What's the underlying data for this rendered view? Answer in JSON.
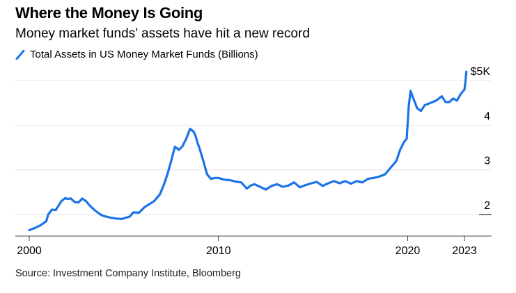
{
  "title": "Where the Money Is Going",
  "subtitle": "Money market funds' assets have hit a new record",
  "legend_label": "Total Assets in US Money Market Funds (Billions)",
  "source": "Source: Investment Company Institute, Bloomberg",
  "line_color": "#1a73e8",
  "chart_data": {
    "type": "line",
    "title": "Where the Money Is Going",
    "xlabel": "",
    "ylabel": "Total Assets in US Money Market Funds (Billions)",
    "xlim": [
      2000,
      2023.3
    ],
    "ylim": [
      1.55,
      5.2
    ],
    "x_ticks": [
      {
        "value": 2000,
        "label": "2000"
      },
      {
        "value": 2010,
        "label": "2010"
      },
      {
        "value": 2020,
        "label": "2020"
      },
      {
        "value": 2023,
        "label": "2023"
      }
    ],
    "y_ticks": [
      {
        "value": 5,
        "label": "$5K"
      },
      {
        "value": 4,
        "label": "4"
      },
      {
        "value": 3,
        "label": "3"
      },
      {
        "value": 2,
        "label": "2"
      }
    ],
    "grid": true,
    "series": [
      {
        "name": "Total Assets in US Money Market Funds (Billions)",
        "x": [
          2000.0,
          2000.3,
          2000.6,
          2000.9,
          2001.0,
          2001.2,
          2001.4,
          2001.7,
          2001.9,
          2002.0,
          2002.2,
          2002.4,
          2002.6,
          2002.8,
          2003.0,
          2003.2,
          2003.4,
          2003.6,
          2003.8,
          2004.0,
          2004.3,
          2004.6,
          2004.9,
          2005.1,
          2005.3,
          2005.5,
          2005.8,
          2006.1,
          2006.3,
          2006.6,
          2006.9,
          2007.1,
          2007.3,
          2007.5,
          2007.7,
          2007.9,
          2008.1,
          2008.3,
          2008.5,
          2008.7,
          2008.8,
          2008.9,
          2009.0,
          2009.2,
          2009.4,
          2009.6,
          2009.8,
          2010.0,
          2010.3,
          2010.6,
          2010.9,
          2011.2,
          2011.5,
          2011.7,
          2011.9,
          2012.2,
          2012.5,
          2012.8,
          2013.1,
          2013.4,
          2013.7,
          2014.0,
          2014.3,
          2014.6,
          2014.9,
          2015.2,
          2015.5,
          2015.8,
          2016.1,
          2016.4,
          2016.7,
          2017.0,
          2017.3,
          2017.6,
          2017.9,
          2018.2,
          2018.5,
          2018.8,
          2019.1,
          2019.4,
          2019.6,
          2019.8,
          2019.95,
          2020.05,
          2020.15,
          2020.3,
          2020.5,
          2020.7,
          2020.9,
          2021.2,
          2021.5,
          2021.8,
          2022.0,
          2022.2,
          2022.4,
          2022.6,
          2022.8,
          2023.0,
          2023.05,
          2023.1
        ],
        "values": [
          1.65,
          1.7,
          1.76,
          1.85,
          2.0,
          2.11,
          2.1,
          2.3,
          2.37,
          2.35,
          2.36,
          2.28,
          2.27,
          2.36,
          2.3,
          2.2,
          2.12,
          2.05,
          1.99,
          1.96,
          1.93,
          1.91,
          1.9,
          1.93,
          1.95,
          2.05,
          2.04,
          2.17,
          2.22,
          2.3,
          2.45,
          2.65,
          2.9,
          3.2,
          3.52,
          3.45,
          3.53,
          3.7,
          3.92,
          3.85,
          3.75,
          3.6,
          3.48,
          3.2,
          2.9,
          2.8,
          2.82,
          2.82,
          2.78,
          2.77,
          2.74,
          2.72,
          2.58,
          2.65,
          2.68,
          2.62,
          2.56,
          2.64,
          2.68,
          2.62,
          2.65,
          2.72,
          2.61,
          2.66,
          2.7,
          2.73,
          2.64,
          2.7,
          2.75,
          2.7,
          2.75,
          2.69,
          2.75,
          2.72,
          2.8,
          2.82,
          2.85,
          2.9,
          3.05,
          3.2,
          3.45,
          3.62,
          3.7,
          4.4,
          4.77,
          4.6,
          4.38,
          4.32,
          4.45,
          4.5,
          4.55,
          4.65,
          4.52,
          4.52,
          4.6,
          4.55,
          4.7,
          4.8,
          4.98,
          5.2
        ]
      }
    ]
  }
}
